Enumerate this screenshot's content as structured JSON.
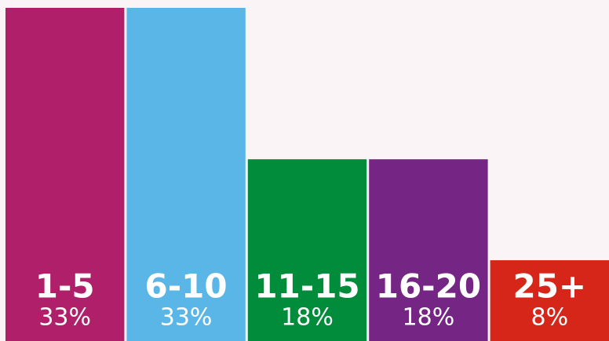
{
  "chart_data": {
    "type": "bar",
    "categories": [
      "1-5",
      "6-10",
      "11-15",
      "16-20",
      "25+"
    ],
    "values": [
      33,
      33,
      18,
      18,
      8
    ],
    "value_labels": [
      "33%",
      "33%",
      "18%",
      "18%",
      "8%"
    ],
    "colors": [
      "#b01f6a",
      "#5ab6e6",
      "#008c3a",
      "#752684",
      "#d6261a"
    ]
  }
}
